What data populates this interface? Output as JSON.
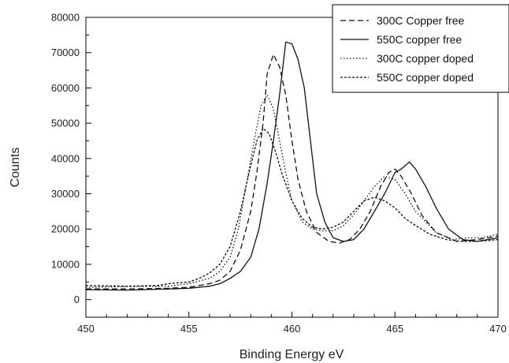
{
  "chart_data": {
    "type": "line",
    "title": "",
    "xlabel": "Binding Energy eV",
    "ylabel": "Counts",
    "xlim": [
      450,
      470
    ],
    "ylim": [
      -5000,
      80000
    ],
    "x_ticks": [
      450,
      455,
      460,
      465,
      470
    ],
    "y_ticks": [
      0,
      10000,
      20000,
      30000,
      40000,
      50000,
      60000,
      70000,
      80000
    ],
    "grid": false,
    "legend_position": "top-right",
    "series": [
      {
        "name": "300C Copper free",
        "style": "dashed",
        "color": "#111111",
        "points": [
          [
            450,
            3000
          ],
          [
            452,
            3000
          ],
          [
            454,
            3200
          ],
          [
            455,
            3500
          ],
          [
            456,
            4500
          ],
          [
            456.5,
            5500
          ],
          [
            457,
            8000
          ],
          [
            457.5,
            14000
          ],
          [
            458,
            25000
          ],
          [
            458.3,
            36000
          ],
          [
            458.6,
            50000
          ],
          [
            458.8,
            64000
          ],
          [
            459.1,
            69500
          ],
          [
            459.4,
            66000
          ],
          [
            459.7,
            58000
          ],
          [
            460,
            45000
          ],
          [
            460.3,
            34000
          ],
          [
            460.7,
            25000
          ],
          [
            461.2,
            19000
          ],
          [
            461.8,
            16500
          ],
          [
            462.3,
            16000
          ],
          [
            462.8,
            17000
          ],
          [
            463.3,
            20000
          ],
          [
            463.8,
            25000
          ],
          [
            464.3,
            32000
          ],
          [
            464.7,
            36000
          ],
          [
            465,
            37000
          ],
          [
            465.3,
            35000
          ],
          [
            465.8,
            30000
          ],
          [
            466.3,
            24000
          ],
          [
            467,
            19000
          ],
          [
            468,
            16500
          ],
          [
            469,
            17000
          ],
          [
            470,
            18000
          ]
        ]
      },
      {
        "name": "550C copper free",
        "style": "solid",
        "color": "#111111",
        "points": [
          [
            450,
            2800
          ],
          [
            452,
            2700
          ],
          [
            454,
            3000
          ],
          [
            455,
            3200
          ],
          [
            456,
            3800
          ],
          [
            456.5,
            4500
          ],
          [
            457,
            6000
          ],
          [
            457.5,
            8000
          ],
          [
            458,
            12000
          ],
          [
            458.4,
            20000
          ],
          [
            458.8,
            33000
          ],
          [
            459.1,
            45000
          ],
          [
            459.4,
            58000
          ],
          [
            459.7,
            73000
          ],
          [
            460,
            72500
          ],
          [
            460.3,
            68000
          ],
          [
            460.6,
            60000
          ],
          [
            460.9,
            45000
          ],
          [
            461.2,
            30000
          ],
          [
            461.6,
            22000
          ],
          [
            462,
            17500
          ],
          [
            462.5,
            16500
          ],
          [
            463,
            17000
          ],
          [
            463.5,
            20000
          ],
          [
            464,
            25000
          ],
          [
            464.5,
            30000
          ],
          [
            465,
            36000
          ],
          [
            465.3,
            37000
          ],
          [
            465.7,
            39000
          ],
          [
            466,
            37000
          ],
          [
            466.5,
            32000
          ],
          [
            467,
            26000
          ],
          [
            467.6,
            20000
          ],
          [
            468.3,
            17000
          ],
          [
            469,
            16500
          ],
          [
            470,
            17500
          ]
        ]
      },
      {
        "name": "300C copper doped",
        "style": "dotted",
        "color": "#111111",
        "points": [
          [
            450,
            3500
          ],
          [
            452,
            3700
          ],
          [
            454,
            3800
          ],
          [
            455,
            4500
          ],
          [
            456,
            6000
          ],
          [
            456.5,
            8000
          ],
          [
            457,
            12000
          ],
          [
            457.4,
            20000
          ],
          [
            457.8,
            33000
          ],
          [
            458.2,
            46000
          ],
          [
            458.5,
            55000
          ],
          [
            458.8,
            58000
          ],
          [
            459.1,
            54000
          ],
          [
            459.4,
            45000
          ],
          [
            459.7,
            36000
          ],
          [
            460,
            28000
          ],
          [
            460.5,
            22000
          ],
          [
            461,
            20000
          ],
          [
            461.5,
            19500
          ],
          [
            462,
            19500
          ],
          [
            462.5,
            21000
          ],
          [
            463,
            24000
          ],
          [
            463.5,
            28000
          ],
          [
            464,
            32000
          ],
          [
            464.5,
            35000
          ],
          [
            465,
            34000
          ],
          [
            465.5,
            30000
          ],
          [
            466,
            25000
          ],
          [
            466.5,
            22000
          ],
          [
            467,
            19000
          ],
          [
            467.8,
            17000
          ],
          [
            468.5,
            17500
          ],
          [
            469.2,
            17500
          ],
          [
            470,
            18500
          ]
        ]
      },
      {
        "name": "550C copper doped",
        "style": "short-dashed",
        "color": "#111111",
        "points": [
          [
            450,
            4000
          ],
          [
            452,
            3800
          ],
          [
            453.5,
            4000
          ],
          [
            454,
            4500
          ],
          [
            455,
            5000
          ],
          [
            455.5,
            6000
          ],
          [
            456,
            7500
          ],
          [
            456.5,
            10000
          ],
          [
            457,
            15000
          ],
          [
            457.5,
            25000
          ],
          [
            458,
            38000
          ],
          [
            458.3,
            45000
          ],
          [
            458.6,
            48500
          ],
          [
            458.9,
            47000
          ],
          [
            459.2,
            42000
          ],
          [
            459.5,
            36000
          ],
          [
            460,
            28000
          ],
          [
            460.5,
            23000
          ],
          [
            461,
            20500
          ],
          [
            461.5,
            20000
          ],
          [
            462,
            20500
          ],
          [
            462.5,
            22000
          ],
          [
            463,
            25000
          ],
          [
            463.5,
            28000
          ],
          [
            464,
            29000
          ],
          [
            464.5,
            28000
          ],
          [
            465,
            26000
          ],
          [
            465.5,
            23000
          ],
          [
            466,
            21000
          ],
          [
            466.7,
            18500
          ],
          [
            467.5,
            17000
          ],
          [
            468.2,
            16500
          ],
          [
            469,
            16500
          ],
          [
            470,
            17000
          ]
        ]
      }
    ]
  }
}
